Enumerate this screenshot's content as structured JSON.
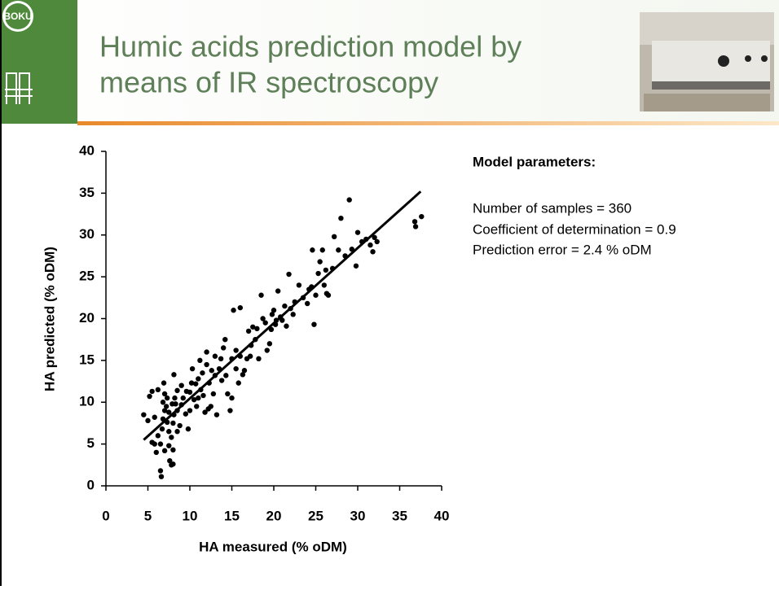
{
  "header": {
    "logo_text": "BOKU",
    "title_lines": [
      "Humic acids prediction model by",
      "means of IR spectroscopy"
    ]
  },
  "model_parameters": {
    "heading": "Model parameters:",
    "lines": [
      "Number of samples = 360",
      "Coefficient of determination = 0.9",
      "Prediction error = 2.4 % oDM"
    ]
  },
  "chart_data": {
    "type": "scatter",
    "x_label": "HA measured (% oDM)",
    "y_label": "HA predicted (% oDM)",
    "color": "#000000",
    "x": [
      4.5,
      5,
      5.2,
      5.5,
      5.8,
      5.5,
      6,
      6.2,
      6.5,
      6.5,
      6.6,
      6.8,
      6.9,
      7,
      7.2,
      7.3,
      7.5,
      7.5,
      7.6,
      7.8,
      8,
      8,
      7.8,
      8,
      8.1,
      7.9,
      8.2,
      8.1,
      8.5,
      8.5,
      8.8,
      7,
      7.3,
      6.7,
      6.2,
      5.8,
      7,
      7.5,
      8.3,
      6.8,
      9,
      9.2,
      9.5,
      9.8,
      10,
      10,
      10.2,
      10.3,
      10.5,
      10.8,
      11,
      11.2,
      11.3,
      11.5,
      11.6,
      11.8,
      12,
      12,
      12.3,
      12.5,
      12.8,
      13,
      13,
      13.2,
      13.5,
      13.8,
      14,
      14.2,
      14.3,
      14.5,
      14.8,
      15,
      15,
      15.2,
      15.5,
      15.5,
      16,
      16,
      16.3,
      16.5,
      16.8,
      17,
      17.3,
      17.5,
      17.8,
      18,
      18.2,
      18.5,
      18.7,
      19,
      19.2,
      19.5,
      19.8,
      20,
      20.2,
      20.5,
      20.8,
      21,
      21.3,
      21.5,
      21.8,
      22.3,
      22.5,
      23,
      23.5,
      24,
      24.5,
      24.6,
      24.8,
      25,
      25.3,
      25.5,
      25.8,
      26,
      26.3,
      26.5,
      27,
      27.2,
      27.7,
      28,
      28.5,
      29,
      29.3,
      29.8,
      30,
      30.5,
      31,
      31.5,
      32,
      32.3,
      36.8,
      36.9,
      37.6,
      31.8,
      12.2,
      10.7,
      11,
      9.6,
      13.7,
      15.8,
      17.2,
      19.7,
      20.3,
      22,
      26.2,
      24.2,
      8.5,
      9,
      12.6
    ],
    "values": [
      8.5,
      7.8,
      10.7,
      11.3,
      8.2,
      5.2,
      4,
      6,
      5,
      1.8,
      1.1,
      8,
      12.3,
      11,
      9.5,
      7.6,
      6.5,
      4.8,
      3,
      2.5,
      2.6,
      4.3,
      5.8,
      7.5,
      8.5,
      9.8,
      10.5,
      13.3,
      11.4,
      9,
      7.2,
      9,
      10.5,
      6.8,
      11.5,
      5,
      4.2,
      8.8,
      9.8,
      10,
      12,
      10.5,
      8.6,
      6.8,
      9,
      11.2,
      12.3,
      14,
      10.3,
      9.5,
      12.8,
      15,
      11.5,
      13.5,
      10.8,
      8.8,
      14.5,
      16,
      12.3,
      9.5,
      11,
      13.2,
      15.5,
      8.5,
      14,
      12.6,
      16.5,
      17.5,
      13.2,
      11,
      9,
      10.5,
      15.2,
      21,
      16.2,
      14,
      21.3,
      15.5,
      13.3,
      13.8,
      15.2,
      18.5,
      16.8,
      19,
      17.5,
      18.8,
      15.2,
      22.8,
      20,
      19.5,
      16.2,
      17,
      20.5,
      21,
      19.3,
      23.3,
      20.2,
      19.8,
      21.5,
      19.1,
      25.3,
      20.5,
      22,
      24,
      22.5,
      21.8,
      23.8,
      28.2,
      19.3,
      22.8,
      25.4,
      26.8,
      28.2,
      24,
      23,
      22.8,
      26,
      29.8,
      28.2,
      32,
      27.5,
      34.2,
      28.3,
      26.3,
      30.3,
      29.2,
      29.5,
      28.8,
      29.7,
      29.2,
      31.6,
      31,
      32.2,
      28,
      9.2,
      12.2,
      10.5,
      11.3,
      15.2,
      12.3,
      15.5,
      18.7,
      19.8,
      21.2,
      25.8,
      23.5,
      6.5,
      9.7,
      13.8
    ],
    "trend": {
      "x": [
        4.5,
        37.5
      ],
      "values": [
        5.5,
        35.2
      ],
      "color": "#000000"
    },
    "xlim": [
      0,
      40
    ],
    "ylim": [
      0,
      40
    ],
    "xticks": [
      0,
      5,
      10,
      15,
      20,
      25,
      30,
      35,
      40
    ],
    "yticks": [
      0,
      5,
      10,
      15,
      20,
      25,
      30,
      35,
      40
    ]
  }
}
